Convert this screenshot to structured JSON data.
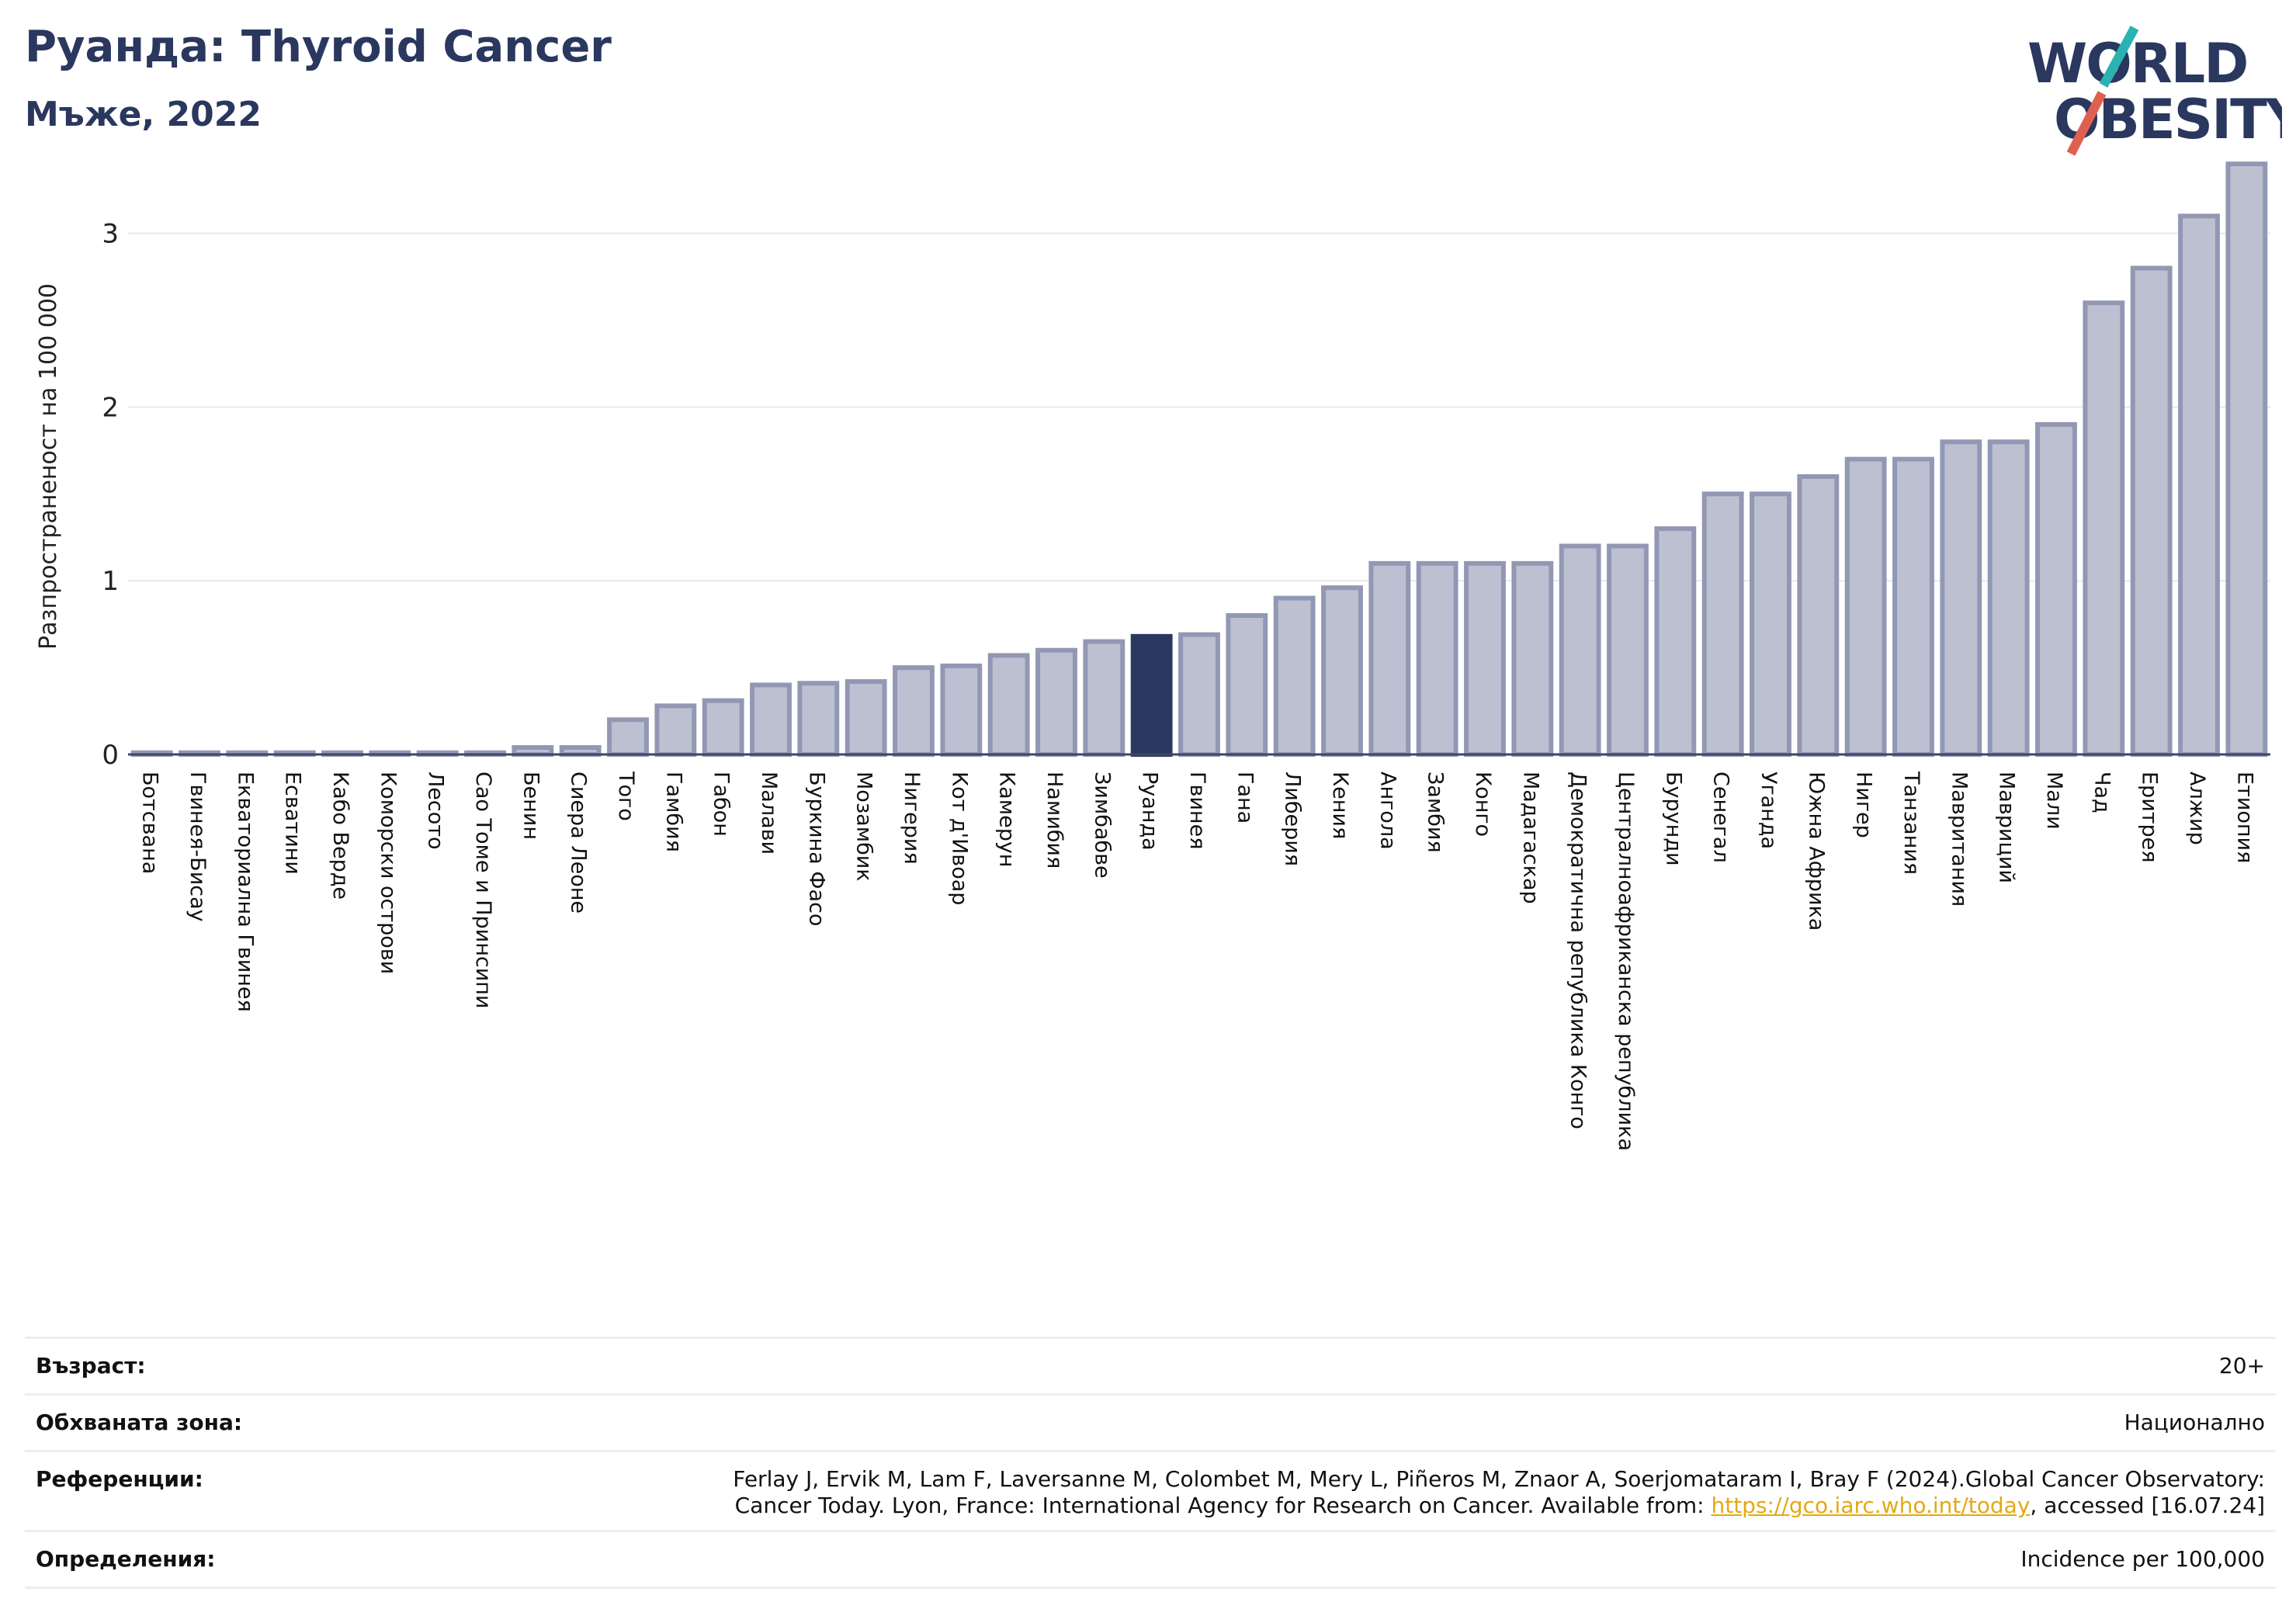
{
  "header": {
    "title": "Руанда: Thyroid Cancer",
    "subtitle": "Мъже, 2022",
    "logo_line1": "WORLD",
    "logo_line2": "OBESITY"
  },
  "colors": {
    "bar": "#bcc0d0",
    "bar_border": "#9298b3",
    "highlight": "#2a375f",
    "logo_text": "#2a375f",
    "logo_teal": "#2ab3b0",
    "logo_red": "#e0604f",
    "grid": "#e6e8ef"
  },
  "chart_data": {
    "type": "bar",
    "ylabel": "Разпространеност  на 100 000",
    "ylim": [
      0,
      3.45
    ],
    "yticks": [
      0,
      1,
      2,
      3
    ],
    "highlight": "Руанда",
    "categories": [
      "Ботсвана",
      "Гвинея-Бисау",
      "Екваториална Гвинея",
      "Есватини",
      "Кабо Верде",
      "Коморски острови",
      "Лесото",
      "Сао Томе и Принсипи",
      "Бенин",
      "Сиера Леоне",
      "Того",
      "Гамбия",
      "Габон",
      "Малави",
      "Буркина Фасо",
      "Мозамбик",
      "Нигерия",
      "Кот д'Ивоар",
      "Камерун",
      "Намибия",
      "Зимбабве",
      "Руанда",
      "Гвинея",
      "Гана",
      "Либерия",
      "Кения",
      "Ангола",
      "Замбия",
      "Конго",
      "Мадагаскар",
      "Демократична република Конго",
      "Централноафриканска република",
      "Бурунди",
      "Сенегал",
      "Уганда",
      "Южна Африка",
      "Нигер",
      "Танзания",
      "Мавритания",
      "Мавриций",
      "Мали",
      "Чад",
      "Еритрея",
      "Алжир",
      "Етиопия"
    ],
    "values": [
      0.01,
      0.01,
      0.01,
      0.01,
      0.01,
      0.01,
      0.01,
      0.01,
      0.04,
      0.04,
      0.2,
      0.28,
      0.31,
      0.4,
      0.41,
      0.42,
      0.5,
      0.51,
      0.57,
      0.6,
      0.65,
      0.68,
      0.69,
      0.8,
      0.9,
      0.96,
      1.1,
      1.1,
      1.1,
      1.1,
      1.2,
      1.2,
      1.3,
      1.5,
      1.5,
      1.6,
      1.7,
      1.7,
      1.8,
      1.8,
      1.9,
      2.6,
      2.8,
      3.1,
      3.4
    ]
  },
  "info": {
    "age_label": "Възраст:",
    "age_value": "20+",
    "area_label": "Обхваната зона:",
    "area_value": "Национално",
    "ref_label": "Референции:",
    "ref_line1": "Ferlay J, Ervik M, Lam F, Laversanne M, Colombet M, Mery L, Piñeros M, Znaor A, Soerjomataram I, Bray F (2024).Global Cancer Observatory:",
    "ref_line2_pre": "Cancer Today. Lyon, France: International Agency for Research on Cancer. Available from: ",
    "ref_link": "https://gco.iarc.who.int/today",
    "ref_line2_post": ", accessed [16.07.24]",
    "def_label": "Определения:",
    "def_value": "Incidence per 100,000"
  }
}
